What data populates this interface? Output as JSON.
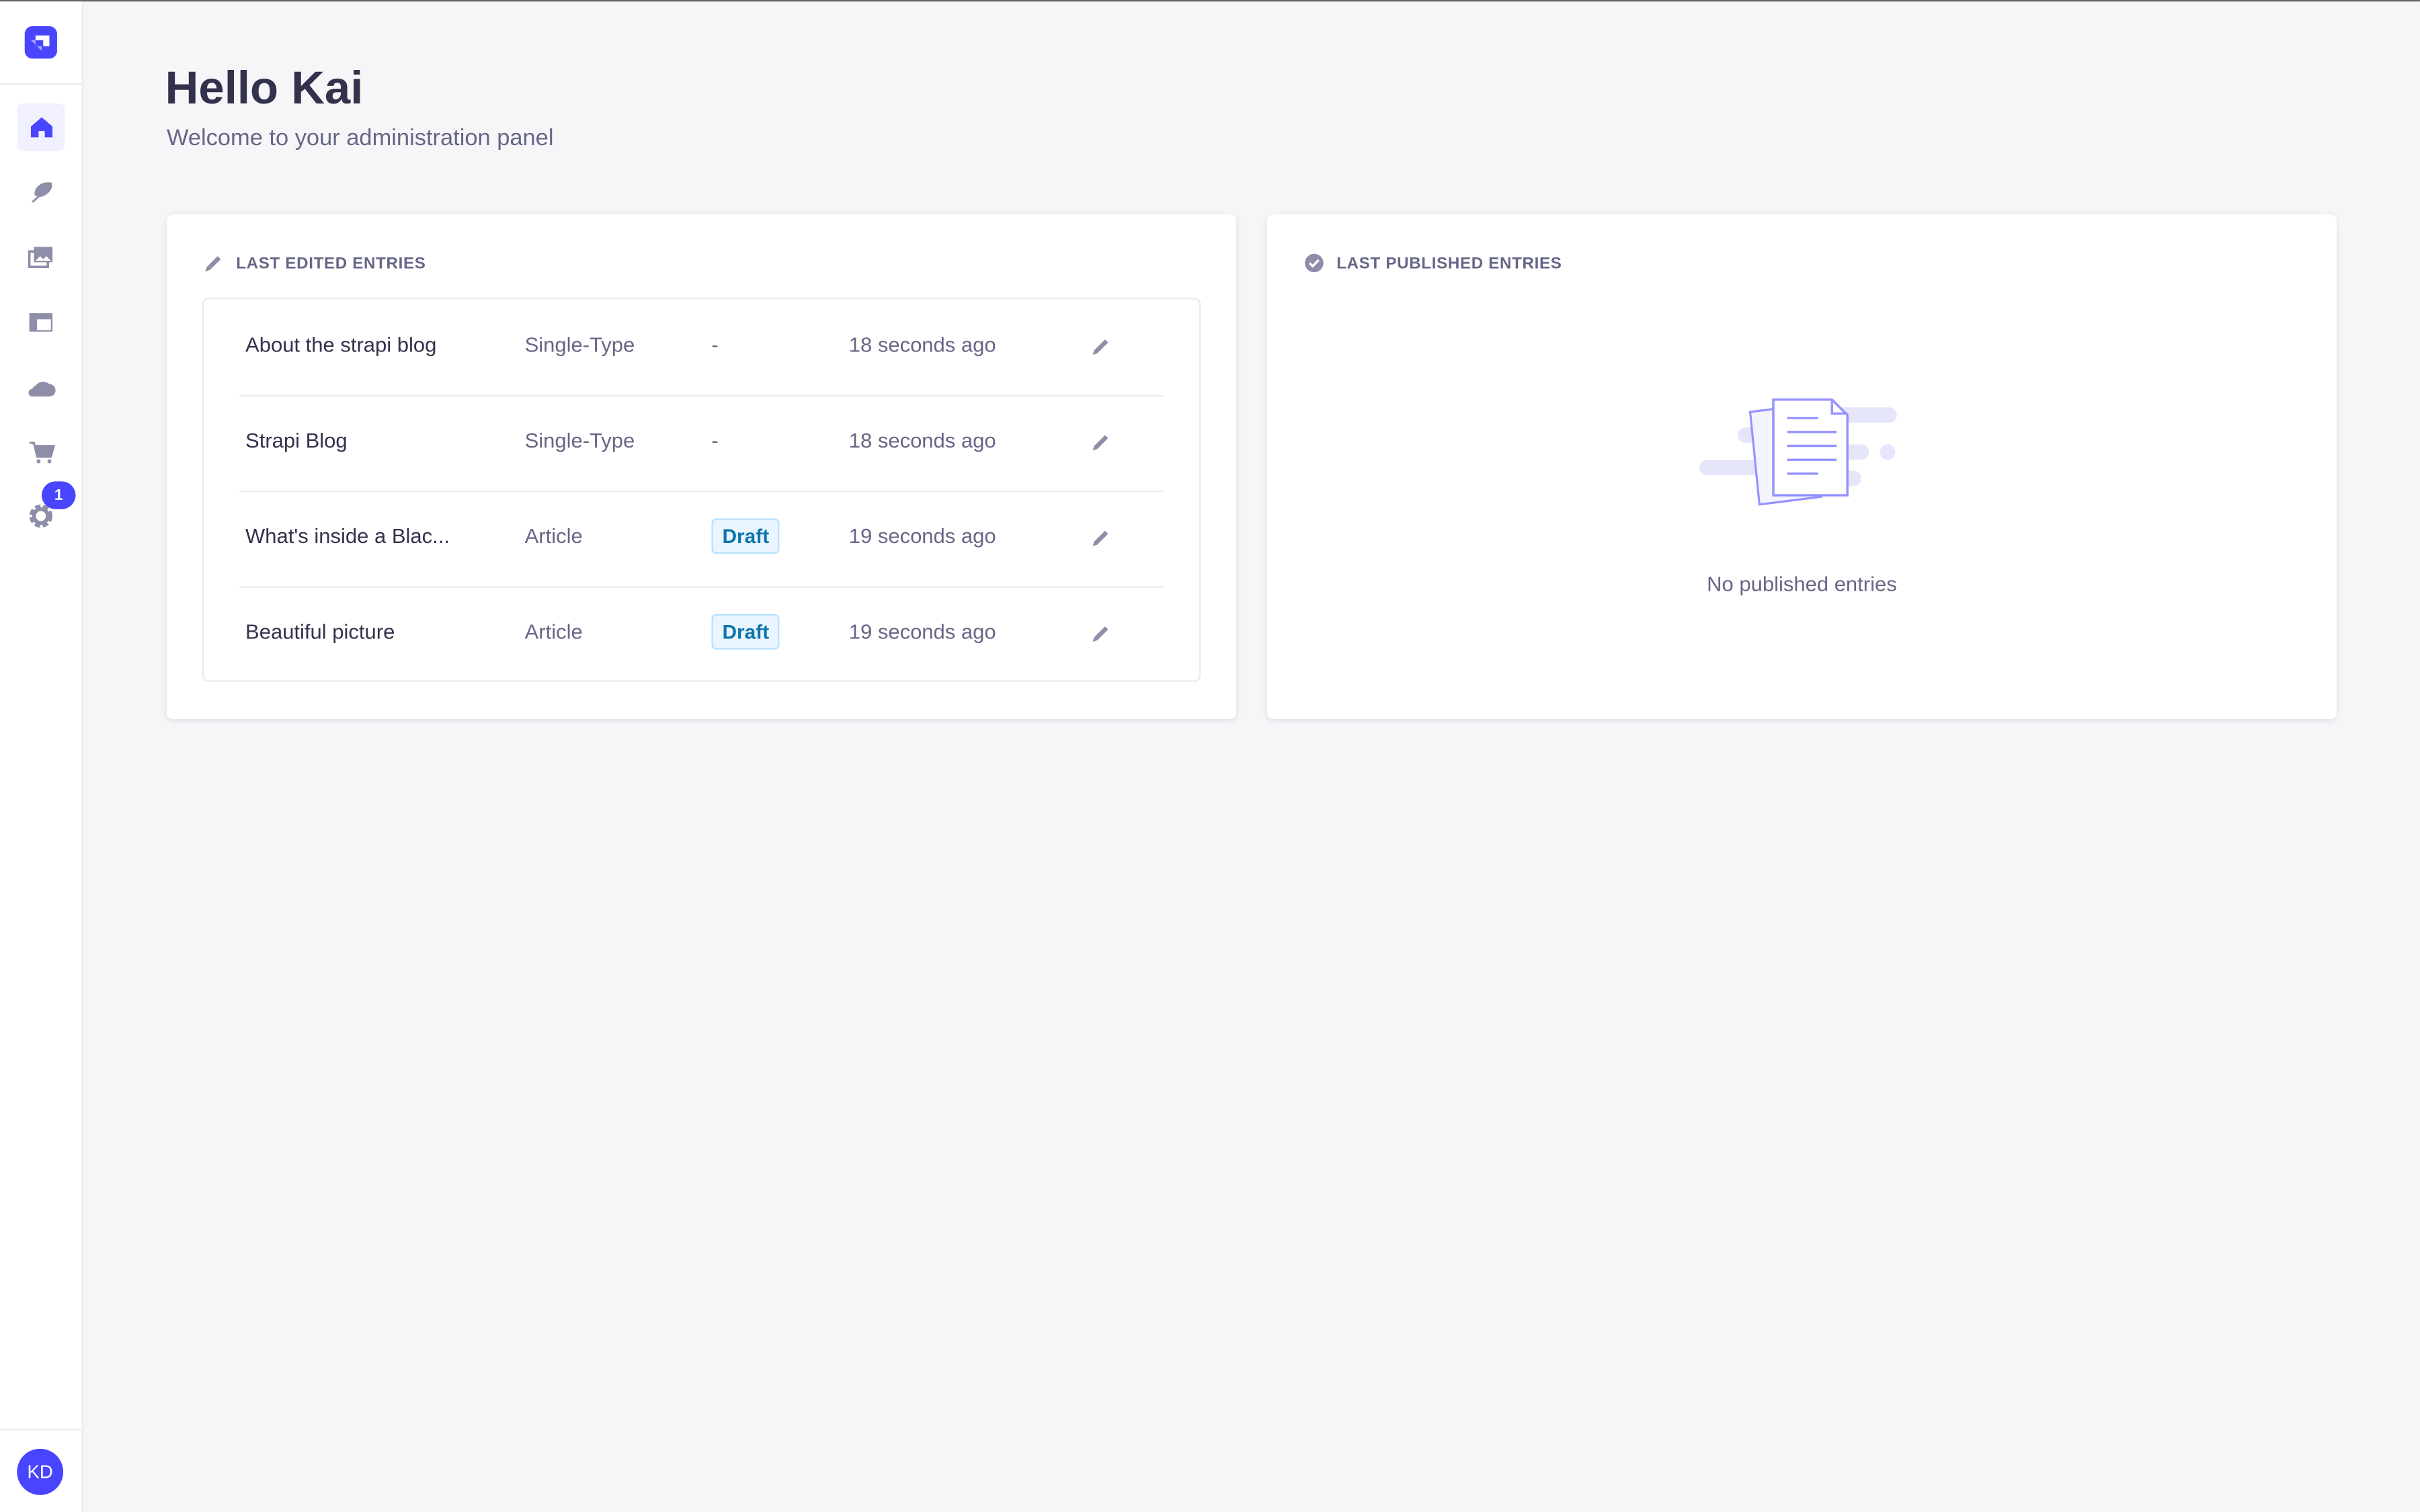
{
  "sidebar": {
    "items": [
      {
        "name": "home",
        "icon": "home-icon",
        "active": true
      },
      {
        "name": "content-manager",
        "icon": "feather-icon"
      },
      {
        "name": "media-library",
        "icon": "images-icon"
      },
      {
        "name": "content-type-builder",
        "icon": "layout-icon"
      },
      {
        "name": "cloud",
        "icon": "cloud-icon"
      },
      {
        "name": "marketplace",
        "icon": "cart-icon"
      },
      {
        "name": "settings",
        "icon": "gear-icon"
      }
    ],
    "settings_badge": "1",
    "avatar_initials": "KD"
  },
  "header": {
    "title": "Hello Kai",
    "subtitle": "Welcome to your administration panel"
  },
  "last_edited": {
    "title": "LAST EDITED ENTRIES",
    "rows": [
      {
        "name": "About the strapi blog",
        "type": "Single-Type",
        "status": "-",
        "time": "18 seconds ago"
      },
      {
        "name": "Strapi Blog",
        "type": "Single-Type",
        "status": "-",
        "time": "18 seconds ago"
      },
      {
        "name": "What's inside a Blac...",
        "type": "Article",
        "status": "Draft",
        "time": "19 seconds ago"
      },
      {
        "name": "Beautiful picture",
        "type": "Article",
        "status": "Draft",
        "time": "19 seconds ago"
      }
    ]
  },
  "last_published": {
    "title": "LAST PUBLISHED ENTRIES",
    "empty_text": "No published entries"
  },
  "colors": {
    "primary": "#4945ff",
    "text": "#32324d",
    "muted": "#666687",
    "draft_bg": "#eaf5ff",
    "draft_text": "#0c75af"
  }
}
